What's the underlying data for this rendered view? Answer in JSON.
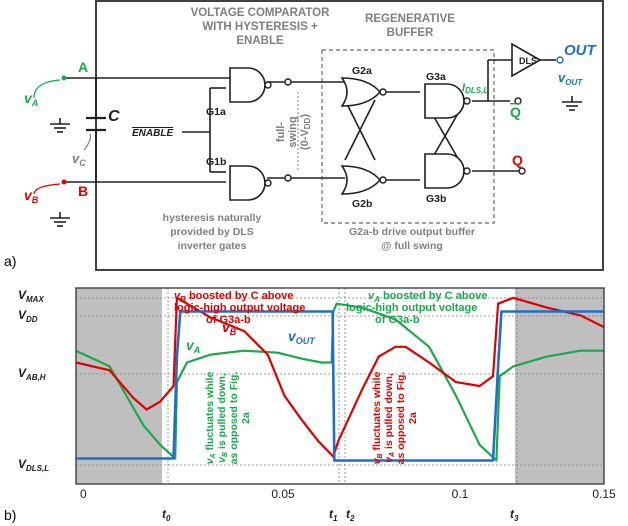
{
  "panel_a": {
    "label": "a)",
    "comparator_title_1": "VOLTAGE COMPARATOR",
    "comparator_title_2": "WITH HYSTERESIS +",
    "comparator_title_3": "ENABLE",
    "buffer_title_1": "REGENERATIVE",
    "buffer_title_2": "BUFFER",
    "node_a": "A",
    "node_b": "B",
    "cap_label": "C",
    "va_label": "v",
    "va_sub": "A",
    "vb_label": "v",
    "vb_sub": "B",
    "vc_label": "v",
    "vc_sub": "C",
    "enable_label": "ENABLE",
    "g1a": "G1a",
    "g1b": "G1b",
    "g2a": "G2a",
    "g2b": "G2b",
    "g3a": "G3a",
    "g3b": "G3b",
    "swing_1": "full-",
    "swing_2": "swing",
    "swing_3": "(0-V",
    "swing_3_sub": "DD",
    "swing_3_end": ")",
    "idls_label": "I",
    "idls_sub": "DLS,L",
    "qbar_label": "Q",
    "q_label": "Q",
    "dls_label": "DLS",
    "out_label": "OUT",
    "vout_label": "v",
    "vout_sub": "OUT",
    "hyst_note_1": "hysteresis naturally",
    "hyst_note_2": "provided by DLS",
    "hyst_note_3": "inverter gates",
    "g2_note_1": "G2a-b drive output buffer",
    "g2_note_2": "@ full swing"
  },
  "panel_b": {
    "label": "b)",
    "y_labels": {
      "vmax": "V",
      "vmax_sub": "MAX",
      "vdd": "V",
      "vdd_sub": "DD",
      "vabh": "V",
      "vabh_sub": "AB,H",
      "vdlsl": "V",
      "vdlsl_sub": "DLS,L"
    },
    "x_ticks": [
      "0",
      "0.05",
      "0.1",
      "0.15"
    ],
    "t_labels": {
      "t0": "t",
      "t0_sub": "0",
      "t1": "t",
      "t1_sub": "1",
      "t2": "t",
      "t2_sub": "2",
      "t3": "t",
      "t3_sub": "3"
    },
    "series_labels": {
      "vb": "v",
      "vb_sub": "B",
      "va": "v",
      "va_sub": "A",
      "vout": "v",
      "vout_sub": "OUT"
    },
    "annot_vb_1_pre": "v",
    "annot_vb_1_sub": "B",
    "annot_vb_1_post": " boosted by C above",
    "annot_vb_2": "logic-high output voltage",
    "annot_vb_3": "of G3a-b",
    "annot_va_1_pre": "v",
    "annot_va_1_sub": "A",
    "annot_va_1_post": " boosted by C above",
    "annot_va_2": "logic-high output voltage",
    "annot_va_3": "of G3a-b",
    "rot_green_1": "v",
    "rot_green_1_sub": "A",
    "rot_green_1_post": " fluctuates while",
    "rot_green_2": "v",
    "rot_green_2_sub": "B",
    "rot_green_2_post": " is pulled down,",
    "rot_green_3": "as opposed to Fig.",
    "rot_green_4": "2a",
    "rot_red_1": "v",
    "rot_red_1_sub": "B",
    "rot_red_1_post": " fluctuates while",
    "rot_red_2": "v",
    "rot_red_2_sub": "A",
    "rot_red_2_post": " is pulled down,",
    "rot_red_3": "as opposed to Fig.",
    "rot_red_4": "2a"
  },
  "colors": {
    "va": "#1aa84a",
    "vb": "#e00000",
    "vout": "#1f6fc9",
    "text_gray": "#7f7f7f",
    "shade": "#bfbfbf"
  },
  "chart_data": {
    "type": "line",
    "x_ticks": [
      0,
      0.05,
      0.1,
      0.15
    ],
    "xlim": [
      -0.005,
      0.152
    ],
    "y_levels": [
      "V_MAX",
      "V_DD",
      "V_AB,H",
      "V_DLS,L"
    ],
    "events": {
      "t0": 0.025,
      "t1": 0.0715,
      "t2": 0.074,
      "t3": 0.12
    },
    "series": [
      {
        "name": "v_OUT",
        "x": [
          -0.005,
          0.024,
          0.025,
          0.026,
          0.0713,
          0.0718,
          0.119,
          0.1205,
          0.1215,
          0.152
        ],
        "y": [
          0.13,
          0.13,
          0.65,
          0.88,
          0.88,
          0.12,
          0.12,
          0.6,
          0.88,
          0.88
        ]
      },
      {
        "name": "v_B",
        "x": [
          -0.005,
          0.005,
          0.012,
          0.016,
          0.02,
          0.024,
          0.025,
          0.027,
          0.035,
          0.045,
          0.052,
          0.057,
          0.062,
          0.067,
          0.0715,
          0.073,
          0.08,
          0.085,
          0.09,
          0.093,
          0.1,
          0.108,
          0.115,
          0.119,
          0.1205,
          0.125,
          0.135,
          0.145,
          0.152
        ],
        "y": [
          0.62,
          0.58,
          0.44,
          0.38,
          0.42,
          0.5,
          0.95,
          0.93,
          0.85,
          0.78,
          0.66,
          0.45,
          0.33,
          0.22,
          0.14,
          0.22,
          0.48,
          0.65,
          0.7,
          0.7,
          0.62,
          0.52,
          0.5,
          0.55,
          0.92,
          0.95,
          0.9,
          0.86,
          0.8
        ]
      },
      {
        "name": "v_A",
        "x": [
          -0.005,
          0.005,
          0.01,
          0.015,
          0.02,
          0.0245,
          0.025,
          0.028,
          0.035,
          0.045,
          0.055,
          0.062,
          0.068,
          0.071,
          0.0715,
          0.0725,
          0.08,
          0.09,
          0.1,
          0.108,
          0.115,
          0.12,
          0.121,
          0.125,
          0.135,
          0.145,
          0.152
        ],
        "y": [
          0.68,
          0.6,
          0.45,
          0.3,
          0.2,
          0.13,
          0.52,
          0.62,
          0.66,
          0.68,
          0.67,
          0.64,
          0.62,
          0.62,
          0.88,
          0.92,
          0.9,
          0.84,
          0.7,
          0.45,
          0.2,
          0.12,
          0.55,
          0.6,
          0.65,
          0.68,
          0.68
        ]
      }
    ]
  }
}
